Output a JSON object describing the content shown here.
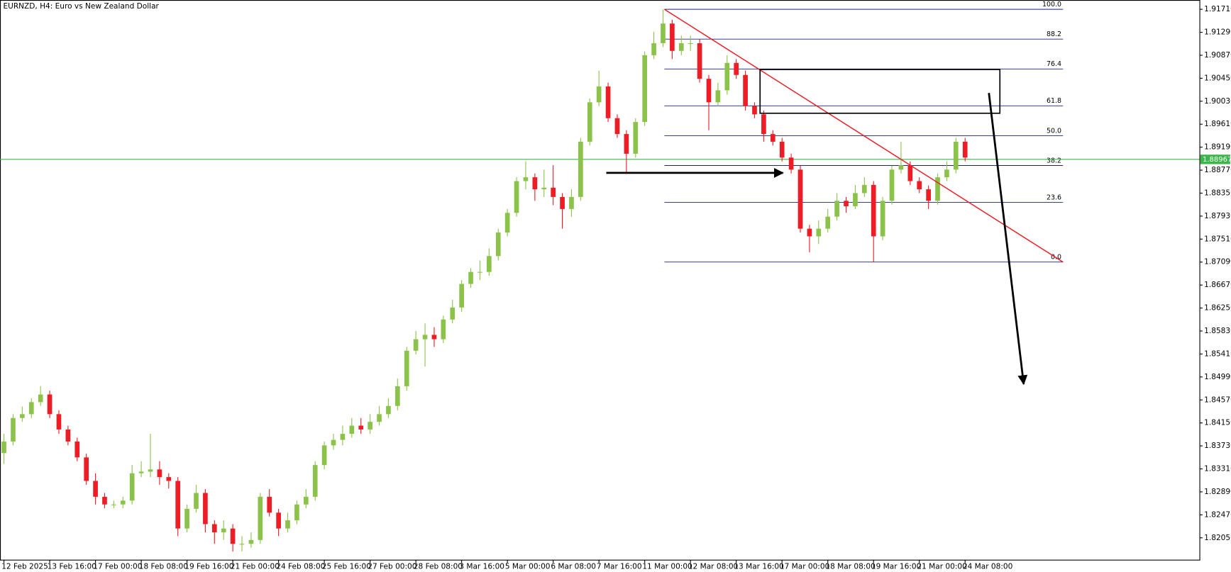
{
  "chart_data": {
    "type": "candlestick",
    "title": "EURNZD, H4:  Euro vs New Zealand Dollar",
    "up_color": "#8bc34a",
    "down_color": "#ee1c25",
    "x": [
      0,
      2,
      4,
      6,
      8,
      10,
      12,
      14,
      16,
      18,
      20,
      22,
      24,
      26,
      28,
      30,
      32,
      34,
      36,
      38,
      40,
      42,
      44,
      46,
      48,
      50,
      52,
      54,
      56,
      58,
      60,
      62,
      64,
      66,
      68,
      70,
      72,
      74,
      76,
      78,
      80,
      82,
      84,
      86,
      88,
      90,
      92,
      94,
      96,
      98,
      100,
      102,
      104,
      106,
      108,
      110,
      112,
      114,
      116,
      118,
      120,
      122,
      124,
      126,
      128,
      130,
      132,
      134,
      136,
      138,
      140,
      142,
      144,
      146,
      148,
      150,
      152,
      154,
      156,
      158,
      160,
      162,
      164,
      166,
      168,
      170,
      172,
      174,
      176,
      178,
      180,
      182,
      184,
      186,
      188,
      190,
      192,
      194,
      196,
      198,
      200,
      202,
      204,
      206,
      208,
      210
    ],
    "open": [
      1.836,
      1.8381,
      1.8424,
      1.8431,
      1.8453,
      1.8467,
      1.8431,
      1.8403,
      1.8381,
      1.8352,
      1.8309,
      1.828,
      1.8266,
      1.8266,
      1.8273,
      1.8323,
      1.8326,
      1.833,
      1.8316,
      1.8309,
      1.8222,
      1.8258,
      1.8287,
      1.823,
      1.8215,
      1.8222,
      1.8194,
      1.8194,
      1.8201,
      1.828,
      1.8251,
      1.8222,
      1.8237,
      1.8266,
      1.828,
      1.8338,
      1.8374,
      1.8384,
      1.8395,
      1.841,
      1.8403,
      1.8417,
      1.8431,
      1.8446,
      1.8482,
      1.8547,
      1.8568,
      1.8576,
      1.8568,
      1.8604,
      1.8626,
      1.8669,
      1.8691,
      1.8691,
      1.872,
      1.8763,
      1.8799,
      1.8857,
      1.8864,
      1.8842,
      1.8845,
      1.8828,
      1.8806,
      1.8828,
      1.8929,
      1.9001,
      1.903,
      1.8972,
      1.8943,
      1.8907,
      1.8965,
      1.9087,
      1.9109,
      1.9145,
      1.9095,
      1.9109,
      1.9109,
      1.9044,
      1.9001,
      1.9023,
      1.9073,
      1.9051,
      1.8994,
      1.8979,
      1.8943,
      1.8929,
      1.89,
      1.8878,
      1.877,
      1.8756,
      1.877,
      1.8792,
      1.8821,
      1.8811,
      1.8835,
      1.885,
      1.8756,
      1.8821,
      1.8878,
      1.8886,
      1.8857,
      1.8842,
      1.8821,
      1.8864,
      1.8878,
      1.8929
    ],
    "high": [
      1.8395,
      1.8431,
      1.8445,
      1.846,
      1.8482,
      1.8474,
      1.8438,
      1.841,
      1.8388,
      1.8359,
      1.8323,
      1.8287,
      1.8273,
      1.828,
      1.8338,
      1.8345,
      1.8395,
      1.8345,
      1.8323,
      1.8316,
      1.8266,
      1.8302,
      1.8294,
      1.8237,
      1.8237,
      1.823,
      1.8208,
      1.8215,
      1.8287,
      1.8294,
      1.8258,
      1.8251,
      1.8273,
      1.8294,
      1.8345,
      1.8381,
      1.8395,
      1.841,
      1.8424,
      1.8424,
      1.8431,
      1.8446,
      1.846,
      1.8496,
      1.8554,
      1.8583,
      1.8597,
      1.859,
      1.8611,
      1.864,
      1.8676,
      1.8698,
      1.8712,
      1.8734,
      1.877,
      1.8806,
      1.8864,
      1.8893,
      1.8871,
      1.8878,
      1.8886,
      1.8835,
      1.8842,
      1.8936,
      1.9008,
      1.9059,
      1.9037,
      1.8979,
      1.895,
      1.8972,
      1.9094,
      1.913,
      1.9171,
      1.9152,
      1.9123,
      1.9123,
      1.9116,
      1.9051,
      1.9037,
      1.9087,
      1.908,
      1.9059,
      1.9001,
      1.8986,
      1.895,
      1.8936,
      1.8907,
      1.8885,
      1.8777,
      1.8785,
      1.8806,
      1.8835,
      1.8828,
      1.885,
      1.8864,
      1.8857,
      1.8828,
      1.8885,
      1.8929,
      1.8893,
      1.8864,
      1.8849,
      1.8871,
      1.8893,
      1.8936,
      1.8936
    ],
    "low": [
      1.834,
      1.8374,
      1.8417,
      1.8424,
      1.8446,
      1.8424,
      1.8395,
      1.8374,
      1.8345,
      1.8302,
      1.8266,
      1.8259,
      1.8259,
      1.8259,
      1.8266,
      1.8316,
      1.8316,
      1.8302,
      1.8295,
      1.8208,
      1.8215,
      1.8251,
      1.8215,
      1.8194,
      1.8201,
      1.818,
      1.818,
      1.8187,
      1.8194,
      1.8244,
      1.8208,
      1.8215,
      1.823,
      1.8259,
      1.8273,
      1.833,
      1.8366,
      1.8374,
      1.8388,
      1.8395,
      1.8395,
      1.841,
      1.8424,
      1.8438,
      1.8474,
      1.854,
      1.8518,
      1.8554,
      1.8561,
      1.8597,
      1.8618,
      1.8662,
      1.8676,
      1.8684,
      1.8712,
      1.8756,
      1.8792,
      1.8842,
      1.8821,
      1.8828,
      1.8813,
      1.877,
      1.8792,
      1.8821,
      1.8922,
      1.8994,
      1.8965,
      1.8936,
      1.887,
      1.89,
      1.8958,
      1.908,
      1.9102,
      1.908,
      1.9087,
      1.9095,
      1.9037,
      1.895,
      1.8994,
      1.9015,
      1.9044,
      1.8986,
      1.8972,
      1.8929,
      1.8922,
      1.8893,
      1.8871,
      1.8763,
      1.8727,
      1.8742,
      1.8763,
      1.8785,
      1.8799,
      1.8806,
      1.8828,
      1.8709,
      1.8749,
      1.8814,
      1.8871,
      1.885,
      1.8835,
      1.8806,
      1.8814,
      1.8857,
      1.8871,
      1.8893
    ],
    "close": [
      1.8381,
      1.8424,
      1.8431,
      1.8453,
      1.8467,
      1.8431,
      1.8403,
      1.8381,
      1.8352,
      1.8309,
      1.828,
      1.8266,
      1.8266,
      1.8273,
      1.8323,
      1.8326,
      1.833,
      1.8316,
      1.8309,
      1.8222,
      1.8258,
      1.8287,
      1.823,
      1.8215,
      1.8222,
      1.8194,
      1.8194,
      1.8201,
      1.828,
      1.8251,
      1.8222,
      1.8237,
      1.8266,
      1.828,
      1.8338,
      1.8374,
      1.8384,
      1.8395,
      1.841,
      1.8403,
      1.8417,
      1.8431,
      1.8446,
      1.8482,
      1.8547,
      1.8568,
      1.8576,
      1.8568,
      1.8604,
      1.8626,
      1.8669,
      1.8691,
      1.8691,
      1.872,
      1.8763,
      1.8799,
      1.8857,
      1.8864,
      1.8842,
      1.8845,
      1.8828,
      1.8806,
      1.8828,
      1.8929,
      1.9001,
      1.903,
      1.8972,
      1.8943,
      1.8907,
      1.8965,
      1.9087,
      1.9109,
      1.9145,
      1.9095,
      1.9109,
      1.9109,
      1.9044,
      1.9001,
      1.9023,
      1.9073,
      1.9051,
      1.8994,
      1.8979,
      1.8943,
      1.8929,
      1.89,
      1.8878,
      1.877,
      1.8756,
      1.877,
      1.8792,
      1.8821,
      1.8811,
      1.8835,
      1.885,
      1.8756,
      1.8821,
      1.8878,
      1.8886,
      1.8857,
      1.8842,
      1.8821,
      1.8864,
      1.8878,
      1.8929,
      1.89
    ],
    "xlim": [
      -0.862,
      261.2
    ],
    "ylim": [
      1.8165,
      1.9188
    ],
    "xticks": [
      {
        "value": 0,
        "label": "12 Feb 2025"
      },
      {
        "value": 10,
        "label": "13 Feb 16:00"
      },
      {
        "value": 20,
        "label": "17 Feb 00:00"
      },
      {
        "value": 30,
        "label": "18 Feb 08:00"
      },
      {
        "value": 40,
        "label": "19 Feb 16:00"
      },
      {
        "value": 50,
        "label": "21 Feb 00:00"
      },
      {
        "value": 60,
        "label": "24 Feb 08:00"
      },
      {
        "value": 70,
        "label": "25 Feb 16:00"
      },
      {
        "value": 80,
        "label": "27 Feb 00:00"
      },
      {
        "value": 90,
        "label": "28 Feb 08:00"
      },
      {
        "value": 100,
        "label": "3 Mar 16:00"
      },
      {
        "value": 110,
        "label": "5 Mar 00:00"
      },
      {
        "value": 120,
        "label": "6 Mar 08:00"
      },
      {
        "value": 130,
        "label": "7 Mar 16:00"
      },
      {
        "value": 140,
        "label": "11 Mar 00:00"
      },
      {
        "value": 150,
        "label": "12 Mar 08:00"
      },
      {
        "value": 160,
        "label": "13 Mar 16:00"
      },
      {
        "value": 170,
        "label": "17 Mar 00:00"
      },
      {
        "value": 180,
        "label": "18 Mar 08:00"
      },
      {
        "value": 190,
        "label": "19 Mar 16:00"
      },
      {
        "value": 200,
        "label": "21 Mar 00:00"
      },
      {
        "value": 210,
        "label": "24 Mar 08:00"
      }
    ],
    "yticks": [
      {
        "value": 1.9171,
        "label": "1.91710"
      },
      {
        "value": 1.9129,
        "label": "1.91290"
      },
      {
        "value": 1.9087,
        "label": "1.90870"
      },
      {
        "value": 1.9045,
        "label": "1.90450"
      },
      {
        "value": 1.9003,
        "label": "1.90030"
      },
      {
        "value": 1.8961,
        "label": "1.89610"
      },
      {
        "value": 1.8919,
        "label": "1.89190"
      },
      {
        "value": 1.8877,
        "label": "1.88770"
      },
      {
        "value": 1.8835,
        "label": "1.88350"
      },
      {
        "value": 1.8793,
        "label": "1.87930"
      },
      {
        "value": 1.8751,
        "label": "1.87510"
      },
      {
        "value": 1.8709,
        "label": "1.87090"
      },
      {
        "value": 1.8667,
        "label": "1.86670"
      },
      {
        "value": 1.8625,
        "label": "1.86250"
      },
      {
        "value": 1.8583,
        "label": "1.85830"
      },
      {
        "value": 1.8541,
        "label": "1.85410"
      },
      {
        "value": 1.8499,
        "label": "1.84990"
      },
      {
        "value": 1.8457,
        "label": "1.84570"
      },
      {
        "value": 1.8415,
        "label": "1.84150"
      },
      {
        "value": 1.8373,
        "label": "1.83730"
      },
      {
        "value": 1.8331,
        "label": "1.83310"
      },
      {
        "value": 1.8289,
        "label": "1.82890"
      },
      {
        "value": 1.8247,
        "label": "1.82470"
      },
      {
        "value": 1.8205,
        "label": "1.82050"
      }
    ],
    "current_price": {
      "value": 1.88967,
      "color": "#3cb64a"
    },
    "fibonacci": {
      "color": "#1a237e",
      "x": [
        144.3,
        231.4
      ],
      "levels": [
        {
          "value": 1.9171,
          "label": "100.0"
        },
        {
          "value": 1.91165,
          "label": "88.2"
        },
        {
          "value": 1.9062,
          "label": "76.4"
        },
        {
          "value": 1.89946,
          "label": "61.8"
        },
        {
          "value": 1.894,
          "label": "50.0"
        },
        {
          "value": 1.88855,
          "label": "38.2"
        },
        {
          "value": 1.8818,
          "label": "23.6"
        },
        {
          "value": 1.8709,
          "label": "0.0"
        }
      ]
    },
    "trendline": {
      "color": "#ee1c25",
      "x": [
        144.3,
        231.4
      ],
      "y": [
        1.9171,
        1.8709
      ]
    },
    "zone": {
      "color": "#000000",
      "x": [
        165.2,
        217.6
      ],
      "y": [
        1.9061,
        1.8981
      ]
    },
    "arrows": [
      {
        "color": "#000000",
        "x": [
          131.6,
          170.2
        ],
        "y": [
          1.8872,
          1.8872
        ]
      },
      {
        "color": "#000000",
        "x": [
          215.2,
          222.8
        ],
        "y": [
          1.9018,
          1.8486
        ]
      }
    ]
  }
}
